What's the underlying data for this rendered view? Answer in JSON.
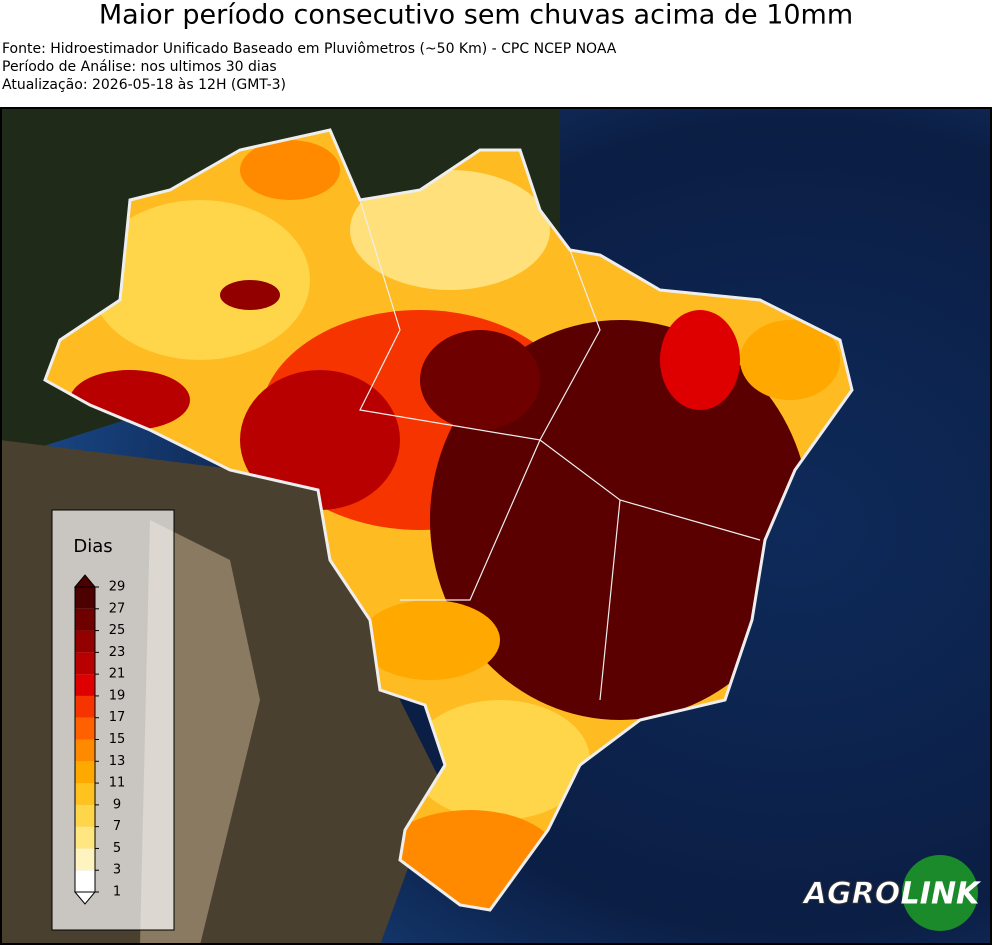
{
  "header": {
    "title": "Maior período consecutivo sem chuvas acima de 10mm",
    "lines": [
      "Fonte: Hidroestimador Unificado Baseado em Pluviômetros (~50 Km) - CPC NCEP NOAA",
      "Período de Análise: nos ultimos 30 dias",
      "Atualização: 2026-05-18 às 12H (GMT-3)"
    ]
  },
  "colorbar": {
    "title": "Dias",
    "ticks": [
      1,
      3,
      5,
      7,
      9,
      11,
      13,
      15,
      17,
      19,
      21,
      23,
      25,
      27,
      29
    ],
    "colors": [
      "#ffffff",
      "#fff3bf",
      "#ffe680",
      "#ffd54a",
      "#ffc21f",
      "#ffa800",
      "#ff8a00",
      "#ff6000",
      "#f53400",
      "#de0000",
      "#b80000",
      "#920000",
      "#6e0000",
      "#4c0000"
    ]
  },
  "logo": {
    "left": "AGRO",
    "right": "LINK"
  }
}
